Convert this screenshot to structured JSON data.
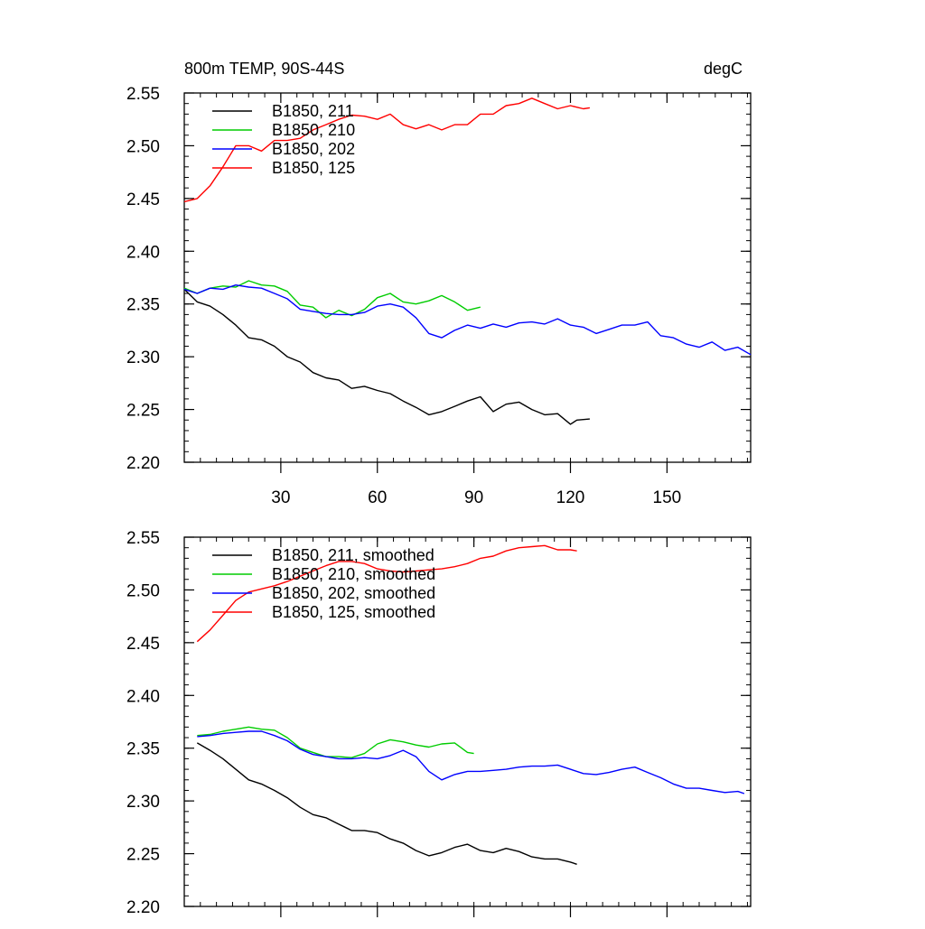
{
  "figure": {
    "left_title": "800m TEMP, 90S-44S",
    "right_title": "degC"
  },
  "chart_data": [
    {
      "type": "line",
      "panel": "top",
      "title": "800m TEMP, 90S-44S",
      "units": "degC",
      "xlim": [
        0,
        176
      ],
      "ylim": [
        2.2,
        2.55
      ],
      "x_ticks": [
        30,
        60,
        90,
        120,
        150
      ],
      "x_tick_labels": [
        "30",
        "60",
        "90",
        "120",
        "150"
      ],
      "y_ticks": [
        2.2,
        2.25,
        2.3,
        2.35,
        2.4,
        2.45,
        2.5,
        2.55
      ],
      "y_tick_labels": [
        "2.20",
        "2.25",
        "2.30",
        "2.35",
        "2.40",
        "2.45",
        "2.50",
        "2.55"
      ],
      "legend_position": "top-left",
      "series": [
        {
          "name": "B1850, 211",
          "color": "#000000",
          "x": [
            0,
            4,
            8,
            12,
            16,
            20,
            24,
            28,
            32,
            36,
            40,
            44,
            48,
            52,
            56,
            60,
            64,
            68,
            72,
            76,
            80,
            84,
            88,
            92,
            96,
            100,
            104,
            108,
            112,
            116,
            120,
            122,
            126
          ],
          "values": [
            2.364,
            2.352,
            2.348,
            2.34,
            2.33,
            2.318,
            2.316,
            2.31,
            2.3,
            2.295,
            2.285,
            2.28,
            2.278,
            2.27,
            2.272,
            2.268,
            2.265,
            2.258,
            2.252,
            2.245,
            2.248,
            2.253,
            2.258,
            2.262,
            2.248,
            2.255,
            2.257,
            2.25,
            2.245,
            2.246,
            2.236,
            2.24,
            2.241
          ]
        },
        {
          "name": "B1850, 210",
          "color": "#00cc00",
          "x": [
            0,
            4,
            8,
            12,
            16,
            20,
            24,
            28,
            32,
            36,
            40,
            44,
            48,
            52,
            56,
            60,
            64,
            68,
            72,
            76,
            80,
            84,
            88,
            92
          ],
          "values": [
            2.365,
            2.36,
            2.365,
            2.367,
            2.366,
            2.372,
            2.368,
            2.367,
            2.362,
            2.349,
            2.347,
            2.337,
            2.344,
            2.339,
            2.345,
            2.356,
            2.36,
            2.352,
            2.35,
            2.353,
            2.358,
            2.352,
            2.344,
            2.347
          ]
        },
        {
          "name": "B1850, 202",
          "color": "#0000ff",
          "x": [
            0,
            4,
            8,
            12,
            16,
            20,
            24,
            28,
            32,
            36,
            40,
            44,
            48,
            52,
            56,
            60,
            64,
            68,
            72,
            76,
            80,
            84,
            88,
            92,
            96,
            100,
            104,
            108,
            112,
            116,
            120,
            124,
            128,
            132,
            136,
            140,
            144,
            148,
            152,
            156,
            160,
            164,
            168,
            172,
            176
          ],
          "values": [
            2.364,
            2.36,
            2.365,
            2.364,
            2.368,
            2.366,
            2.365,
            2.36,
            2.355,
            2.345,
            2.343,
            2.341,
            2.34,
            2.34,
            2.342,
            2.348,
            2.35,
            2.347,
            2.337,
            2.322,
            2.318,
            2.325,
            2.33,
            2.327,
            2.331,
            2.328,
            2.332,
            2.333,
            2.331,
            2.336,
            2.33,
            2.328,
            2.322,
            2.326,
            2.33,
            2.33,
            2.333,
            2.32,
            2.318,
            2.312,
            2.309,
            2.314,
            2.306,
            2.309,
            2.302
          ]
        },
        {
          "name": "B1850, 125",
          "color": "#ff0000",
          "x": [
            0,
            4,
            8,
            12,
            16,
            20,
            24,
            28,
            32,
            36,
            40,
            44,
            48,
            52,
            56,
            60,
            64,
            68,
            72,
            76,
            80,
            84,
            88,
            92,
            96,
            100,
            104,
            108,
            112,
            116,
            120,
            124,
            126
          ],
          "values": [
            2.447,
            2.45,
            2.462,
            2.48,
            2.5,
            2.5,
            2.495,
            2.505,
            2.505,
            2.507,
            2.515,
            2.52,
            2.525,
            2.529,
            2.528,
            2.525,
            2.53,
            2.52,
            2.516,
            2.52,
            2.515,
            2.52,
            2.52,
            2.53,
            2.53,
            2.538,
            2.54,
            2.545,
            2.54,
            2.535,
            2.538,
            2.535,
            2.536
          ]
        }
      ]
    },
    {
      "type": "line",
      "panel": "bottom",
      "xlim": [
        0,
        176
      ],
      "ylim": [
        2.2,
        2.55
      ],
      "x_ticks": [
        30,
        60,
        90,
        120,
        150
      ],
      "y_ticks": [
        2.2,
        2.25,
        2.3,
        2.35,
        2.4,
        2.45,
        2.5,
        2.55
      ],
      "y_tick_labels": [
        "2.20",
        "2.25",
        "2.30",
        "2.35",
        "2.40",
        "2.45",
        "2.50",
        "2.55"
      ],
      "legend_position": "top-left",
      "series": [
        {
          "name": "B1850, 211, smoothed",
          "color": "#000000",
          "x": [
            4,
            8,
            12,
            16,
            20,
            24,
            28,
            32,
            36,
            40,
            44,
            48,
            52,
            56,
            60,
            64,
            68,
            72,
            76,
            80,
            84,
            88,
            92,
            96,
            100,
            104,
            108,
            112,
            116,
            120,
            122
          ],
          "values": [
            2.355,
            2.348,
            2.34,
            2.33,
            2.32,
            2.316,
            2.31,
            2.303,
            2.294,
            2.287,
            2.284,
            2.278,
            2.272,
            2.272,
            2.27,
            2.264,
            2.26,
            2.253,
            2.248,
            2.251,
            2.256,
            2.259,
            2.253,
            2.251,
            2.255,
            2.252,
            2.247,
            2.245,
            2.245,
            2.242,
            2.24
          ]
        },
        {
          "name": "B1850, 210, smoothed",
          "color": "#00cc00",
          "x": [
            4,
            8,
            12,
            16,
            20,
            24,
            28,
            32,
            36,
            40,
            44,
            48,
            52,
            56,
            60,
            64,
            68,
            72,
            76,
            80,
            84,
            88,
            90
          ],
          "values": [
            2.362,
            2.363,
            2.366,
            2.368,
            2.37,
            2.368,
            2.367,
            2.36,
            2.35,
            2.346,
            2.342,
            2.342,
            2.341,
            2.345,
            2.354,
            2.358,
            2.356,
            2.353,
            2.351,
            2.354,
            2.355,
            2.346,
            2.345
          ]
        },
        {
          "name": "B1850, 202, smoothed",
          "color": "#0000ff",
          "x": [
            4,
            8,
            12,
            16,
            20,
            24,
            28,
            32,
            36,
            40,
            44,
            48,
            52,
            56,
            60,
            64,
            68,
            72,
            76,
            80,
            84,
            88,
            92,
            96,
            100,
            104,
            108,
            112,
            116,
            120,
            124,
            128,
            132,
            136,
            140,
            144,
            148,
            152,
            156,
            160,
            164,
            168,
            172,
            174
          ],
          "values": [
            2.361,
            2.362,
            2.364,
            2.365,
            2.366,
            2.366,
            2.362,
            2.357,
            2.349,
            2.344,
            2.342,
            2.34,
            2.34,
            2.341,
            2.34,
            2.343,
            2.348,
            2.342,
            2.328,
            2.32,
            2.325,
            2.328,
            2.328,
            2.329,
            2.33,
            2.332,
            2.333,
            2.333,
            2.334,
            2.33,
            2.326,
            2.325,
            2.327,
            2.33,
            2.332,
            2.327,
            2.322,
            2.316,
            2.312,
            2.312,
            2.31,
            2.308,
            2.309,
            2.307
          ]
        },
        {
          "name": "B1850, 125, smoothed",
          "color": "#ff0000",
          "x": [
            4,
            8,
            12,
            16,
            20,
            24,
            28,
            32,
            36,
            40,
            44,
            48,
            52,
            56,
            60,
            64,
            68,
            72,
            76,
            80,
            84,
            88,
            92,
            96,
            100,
            104,
            108,
            112,
            116,
            120,
            122
          ],
          "values": [
            2.451,
            2.462,
            2.476,
            2.49,
            2.498,
            2.501,
            2.504,
            2.508,
            2.513,
            2.518,
            2.523,
            2.527,
            2.527,
            2.525,
            2.52,
            2.518,
            2.517,
            2.518,
            2.519,
            2.52,
            2.522,
            2.525,
            2.53,
            2.532,
            2.537,
            2.54,
            2.541,
            2.542,
            2.538,
            2.538,
            2.537
          ]
        }
      ]
    }
  ]
}
